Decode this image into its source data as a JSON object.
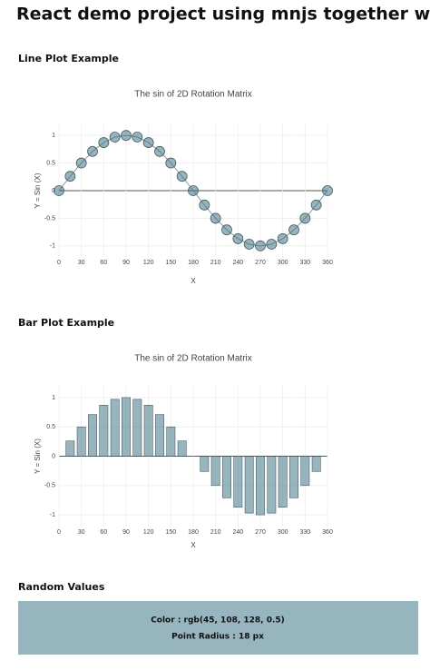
{
  "header": {
    "title": "React demo project using mnjs together with plotly.js"
  },
  "sections": [
    "Line Plot Example",
    "Bar Plot Example",
    "Random Values"
  ],
  "random_values": {
    "color_text": "Color : rgb(45, 108, 128, 0.5)",
    "radius_text": "Point Radius : 18 px"
  },
  "chart_data": [
    {
      "type": "line",
      "title": "The sin of 2D Rotation Matrix",
      "x_label": "X",
      "y_label": "Y = Sin (X)",
      "x": [
        0,
        15,
        30,
        45,
        60,
        75,
        90,
        105,
        120,
        135,
        150,
        165,
        180,
        195,
        210,
        225,
        240,
        255,
        270,
        285,
        300,
        315,
        330,
        345,
        360
      ],
      "values": [
        0,
        0.26,
        0.5,
        0.71,
        0.87,
        0.97,
        1,
        0.97,
        0.87,
        0.71,
        0.5,
        0.26,
        0,
        -0.26,
        -0.5,
        -0.71,
        -0.87,
        -0.97,
        -1,
        -0.97,
        -0.87,
        -0.71,
        -0.5,
        -0.26,
        0
      ],
      "color": "rgba(45, 108, 128, 0.5)",
      "xlim": [
        0,
        360
      ],
      "ylim": [
        -1.2,
        1.2
      ],
      "xticks": [
        0,
        30,
        60,
        90,
        120,
        150,
        180,
        210,
        240,
        270,
        300,
        330,
        360
      ],
      "yticks": [
        -1,
        -0.5,
        0,
        0.5,
        1
      ],
      "grid": true
    },
    {
      "type": "bar",
      "title": "The sin of 2D Rotation Matrix",
      "x_label": "X",
      "y_label": "Y = Sin (X)",
      "x": [
        0,
        15,
        30,
        45,
        60,
        75,
        90,
        105,
        120,
        135,
        150,
        165,
        180,
        195,
        210,
        225,
        240,
        255,
        270,
        285,
        300,
        315,
        330,
        345,
        360
      ],
      "values": [
        0,
        0.26,
        0.5,
        0.71,
        0.87,
        0.97,
        1,
        0.97,
        0.87,
        0.71,
        0.5,
        0.26,
        0,
        -0.26,
        -0.5,
        -0.71,
        -0.87,
        -0.97,
        -1,
        -0.97,
        -0.87,
        -0.71,
        -0.5,
        -0.26,
        0
      ],
      "color": "rgba(45, 108, 128, 0.5)",
      "xlim": [
        0,
        360
      ],
      "ylim": [
        -1.2,
        1.2
      ],
      "xticks": [
        0,
        30,
        60,
        90,
        120,
        150,
        180,
        210,
        240,
        270,
        300,
        330,
        360
      ],
      "yticks": [
        -1,
        -0.5,
        0,
        0.5,
        1
      ],
      "grid": true
    }
  ]
}
